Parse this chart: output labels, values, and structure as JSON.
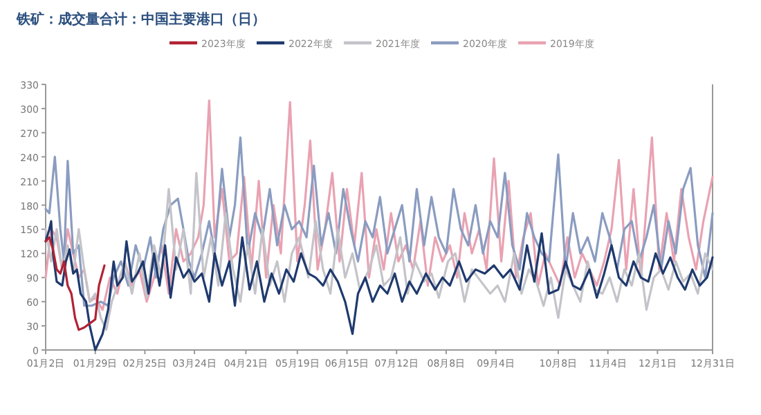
{
  "chart_data": {
    "type": "line",
    "title": "铁矿：成交量合计：中国主要港口（日）",
    "legend": "top",
    "xlim": [
      "--01-02",
      "--12-31"
    ],
    "xticks": [
      {
        "value": "--01-02",
        "label": "01月2日"
      },
      {
        "value": "--01-29",
        "label": "01月29日"
      },
      {
        "value": "--02-25",
        "label": "02月25日"
      },
      {
        "value": "--03-24",
        "label": "03月24日"
      },
      {
        "value": "--04-21",
        "label": "04月21日"
      },
      {
        "value": "--05-19",
        "label": "05月19日"
      },
      {
        "value": "--06-15",
        "label": "06月15日"
      },
      {
        "value": "--07-12",
        "label": "07月12日"
      },
      {
        "value": "--08-08",
        "label": "08月8日"
      },
      {
        "value": "--09-04",
        "label": "09月4日"
      },
      {
        "value": "--10-08",
        "label": "10月8日"
      },
      {
        "value": "--11-04",
        "label": "11月4日"
      },
      {
        "value": "--12-01",
        "label": "12月1日"
      },
      {
        "value": "--12-31",
        "label": "12月31日"
      }
    ],
    "ylim": [
      0,
      330
    ],
    "yticks": [
      0,
      30,
      60,
      90,
      120,
      150,
      180,
      210,
      240,
      270,
      300,
      330
    ],
    "series": [
      {
        "name": "2023年度",
        "color": "#b22234",
        "x": [
          "--01-02",
          "--01-04",
          "--01-06",
          "--01-08",
          "--01-10",
          "--01-12",
          "--01-14",
          "--01-16",
          "--01-18",
          "--01-20",
          "--01-23",
          "--01-26",
          "--01-29",
          "--01-31",
          "--02-03"
        ],
        "values": [
          135,
          140,
          125,
          100,
          95,
          110,
          80,
          70,
          40,
          25,
          28,
          33,
          38,
          80,
          105
        ]
      },
      {
        "name": "2022年度",
        "color": "#1f3a6e",
        "x": [
          "--01-02",
          "--01-04",
          "--01-05",
          "--01-06",
          "--01-08",
          "--01-11",
          "--01-13",
          "--01-15",
          "--01-17",
          "--01-19",
          "--01-21",
          "--01-24",
          "--01-26",
          "--01-29",
          "--02-02",
          "--02-05",
          "--02-08",
          "--02-10",
          "--02-13",
          "--02-15",
          "--02-18",
          "--02-21",
          "--02-24",
          "--02-27",
          "--03-02",
          "--03-05",
          "--03-08",
          "--03-11",
          "--03-14",
          "--03-18",
          "--03-21",
          "--03-24",
          "--03-28",
          "--04-01",
          "--04-04",
          "--04-08",
          "--04-12",
          "--04-15",
          "--04-19",
          "--04-23",
          "--04-27",
          "--05-01",
          "--05-05",
          "--05-09",
          "--05-13",
          "--05-17",
          "--05-21",
          "--05-25",
          "--05-29",
          "--06-02",
          "--06-06",
          "--06-10",
          "--06-14",
          "--06-18",
          "--06-21",
          "--06-25",
          "--06-29",
          "--07-03",
          "--07-07",
          "--07-11",
          "--07-15",
          "--07-19",
          "--07-23",
          "--07-28",
          "--08-02",
          "--08-06",
          "--08-10",
          "--08-15",
          "--08-19",
          "--08-24",
          "--08-29",
          "--09-03",
          "--09-08",
          "--09-12",
          "--09-17",
          "--09-21",
          "--09-25",
          "--09-29",
          "--10-03",
          "--10-08",
          "--10-12",
          "--10-16",
          "--10-20",
          "--10-25",
          "--10-29",
          "--11-02",
          "--11-06",
          "--11-10",
          "--11-14",
          "--11-18",
          "--11-22",
          "--11-26",
          "--11-30",
          "--12-04",
          "--12-08",
          "--12-12",
          "--12-16",
          "--12-20",
          "--12-24",
          "--12-28",
          "--12-31"
        ],
        "values": [
          135,
          150,
          160,
          120,
          85,
          80,
          110,
          125,
          95,
          100,
          70,
          60,
          30,
          0,
          20,
          50,
          110,
          80,
          90,
          135,
          85,
          95,
          110,
          70,
          120,
          80,
          130,
          65,
          115,
          90,
          100,
          85,
          95,
          60,
          120,
          80,
          110,
          55,
          140,
          75,
          110,
          60,
          95,
          70,
          100,
          85,
          120,
          95,
          90,
          80,
          100,
          85,
          60,
          20,
          70,
          90,
          60,
          80,
          70,
          95,
          60,
          85,
          70,
          95,
          75,
          90,
          80,
          110,
          85,
          100,
          95,
          105,
          90,
          100,
          75,
          130,
          85,
          145,
          70,
          75,
          110,
          80,
          75,
          100,
          65,
          95,
          130,
          90,
          80,
          110,
          90,
          85,
          120,
          95,
          115,
          90,
          75,
          100,
          80,
          90,
          115
        ]
      },
      {
        "name": "2021年度",
        "color": "#c3c3c9",
        "x": [
          "--01-02",
          "--01-05",
          "--01-08",
          "--01-11",
          "--01-14",
          "--01-17",
          "--01-20",
          "--01-23",
          "--01-26",
          "--01-29",
          "--02-01",
          "--02-04",
          "--02-07",
          "--02-10",
          "--02-14",
          "--02-18",
          "--02-22",
          "--02-26",
          "--03-02",
          "--03-06",
          "--03-10",
          "--03-14",
          "--03-18",
          "--03-22",
          "--03-25",
          "--03-29",
          "--04-02",
          "--04-06",
          "--04-10",
          "--04-14",
          "--04-18",
          "--04-22",
          "--04-26",
          "--04-30",
          "--05-04",
          "--05-08",
          "--05-12",
          "--05-16",
          "--05-20",
          "--05-25",
          "--05-29",
          "--06-02",
          "--06-06",
          "--06-10",
          "--06-14",
          "--06-18",
          "--06-22",
          "--06-27",
          "--07-01",
          "--07-05",
          "--07-09",
          "--07-14",
          "--07-18",
          "--07-22",
          "--07-27",
          "--07-31",
          "--08-04",
          "--08-09",
          "--08-13",
          "--08-18",
          "--08-22",
          "--08-27",
          "--09-01",
          "--09-05",
          "--09-09",
          "--09-14",
          "--09-18",
          "--09-22",
          "--09-26",
          "--09-30",
          "--10-04",
          "--10-08",
          "--10-12",
          "--10-16",
          "--10-20",
          "--10-24",
          "--10-28",
          "--11-01",
          "--11-05",
          "--11-09",
          "--11-13",
          "--11-17",
          "--11-21",
          "--11-25",
          "--11-29",
          "--12-03",
          "--12-07",
          "--12-11",
          "--12-15",
          "--12-19",
          "--12-23",
          "--12-27",
          "--12-31"
        ],
        "values": [
          150,
          110,
          150,
          100,
          130,
          95,
          150,
          100,
          60,
          70,
          40,
          25,
          60,
          80,
          110,
          70,
          120,
          65,
          130,
          90,
          200,
          100,
          150,
          70,
          220,
          90,
          140,
          80,
          170,
          100,
          60,
          130,
          70,
          150,
          80,
          110,
          60,
          120,
          140,
          90,
          160,
          100,
          70,
          150,
          90,
          120,
          75,
          100,
          130,
          80,
          90,
          140,
          70,
          110,
          85,
          95,
          65,
          110,
          120,
          60,
          100,
          85,
          70,
          80,
          60,
          120,
          70,
          100,
          85,
          55,
          90,
          40,
          100,
          80,
          60,
          110,
          75,
          70,
          90,
          60,
          100,
          80,
          120,
          50,
          90,
          100,
          75,
          110,
          85,
          95,
          70,
          120,
          100
        ]
      },
      {
        "name": "2020年度",
        "color": "#8a9cc0",
        "x": [
          "--01-02",
          "--01-04",
          "--01-07",
          "--01-10",
          "--01-12",
          "--01-14",
          "--01-17",
          "--01-20",
          "--01-23",
          "--01-27",
          "--02-01",
          "--02-05",
          "--02-08",
          "--02-12",
          "--02-16",
          "--02-20",
          "--02-24",
          "--02-28",
          "--03-03",
          "--03-07",
          "--03-11",
          "--03-15",
          "--03-18",
          "--03-21",
          "--03-24",
          "--03-28",
          "--04-01",
          "--04-04",
          "--04-08",
          "--04-12",
          "--04-15",
          "--04-18",
          "--04-22",
          "--04-26",
          "--04-30",
          "--05-04",
          "--05-08",
          "--05-12",
          "--05-16",
          "--05-20",
          "--05-24",
          "--05-28",
          "--06-01",
          "--06-05",
          "--06-09",
          "--06-13",
          "--06-17",
          "--06-21",
          "--06-25",
          "--06-29",
          "--07-03",
          "--07-07",
          "--07-11",
          "--07-15",
          "--07-19",
          "--07-23",
          "--07-27",
          "--07-31",
          "--08-04",
          "--08-08",
          "--08-12",
          "--08-16",
          "--08-20",
          "--08-24",
          "--08-28",
          "--09-01",
          "--09-05",
          "--09-09",
          "--09-13",
          "--09-17",
          "--09-21",
          "--09-25",
          "--09-29",
          "--10-03",
          "--10-08",
          "--10-12",
          "--10-16",
          "--10-20",
          "--10-24",
          "--10-28",
          "--11-01",
          "--11-05",
          "--11-09",
          "--11-13",
          "--11-17",
          "--11-21",
          "--11-25",
          "--11-29",
          "--12-03",
          "--12-07",
          "--12-11",
          "--12-15",
          "--12-19",
          "--12-23",
          "--12-27",
          "--12-31"
        ],
        "values": [
          175,
          170,
          240,
          150,
          110,
          235,
          120,
          130,
          55,
          55,
          60,
          55,
          90,
          110,
          80,
          130,
          100,
          140,
          90,
          150,
          180,
          188,
          150,
          110,
          90,
          120,
          160,
          120,
          225,
          140,
          180,
          264,
          120,
          170,
          140,
          200,
          130,
          180,
          150,
          160,
          140,
          229,
          130,
          170,
          120,
          200,
          150,
          110,
          160,
          140,
          190,
          120,
          150,
          180,
          110,
          200,
          130,
          190,
          140,
          120,
          200,
          150,
          130,
          180,
          120,
          160,
          140,
          220,
          130,
          100,
          170,
          140,
          120,
          110,
          243,
          100,
          170,
          120,
          140,
          110,
          170,
          140,
          100,
          150,
          160,
          110,
          140,
          180,
          100,
          160,
          120,
          200,
          226,
          130,
          90,
          170
        ]
      },
      {
        "name": "2019年度",
        "color": "#e9a2b2",
        "x": [
          "--01-02",
          "--01-05",
          "--01-08",
          "--01-11",
          "--01-14",
          "--01-17",
          "--01-20",
          "--01-23",
          "--01-26",
          "--01-29",
          "--02-02",
          "--02-06",
          "--02-10",
          "--02-14",
          "--02-18",
          "--02-22",
          "--02-26",
          "--03-02",
          "--03-06",
          "--03-10",
          "--03-14",
          "--03-18",
          "--03-22",
          "--03-26",
          "--03-29",
          "--04-01",
          "--04-04",
          "--04-08",
          "--04-12",
          "--04-16",
          "--04-20",
          "--04-24",
          "--04-28",
          "--05-02",
          "--05-06",
          "--05-10",
          "--05-15",
          "--05-19",
          "--05-23",
          "--05-26",
          "--05-30",
          "--06-03",
          "--06-07",
          "--06-11",
          "--06-15",
          "--06-19",
          "--06-23",
          "--06-27",
          "--07-01",
          "--07-05",
          "--07-09",
          "--07-13",
          "--07-17",
          "--07-21",
          "--07-25",
          "--07-29",
          "--08-02",
          "--08-06",
          "--08-10",
          "--08-14",
          "--08-18",
          "--08-22",
          "--08-26",
          "--08-30",
          "--09-03",
          "--09-07",
          "--09-11",
          "--09-15",
          "--09-19",
          "--09-23",
          "--09-27",
          "--10-01",
          "--10-05",
          "--10-09",
          "--10-13",
          "--10-17",
          "--10-21",
          "--10-25",
          "--10-29",
          "--11-02",
          "--11-06",
          "--11-10",
          "--11-14",
          "--11-18",
          "--11-22",
          "--11-28",
          "--12-02",
          "--12-06",
          "--12-10",
          "--12-14",
          "--12-18",
          "--12-22",
          "--12-26",
          "--12-31"
        ],
        "values": [
          90,
          150,
          140,
          100,
          150,
          120,
          90,
          100,
          60,
          65,
          50,
          90,
          70,
          110,
          80,
          100,
          60,
          90,
          130,
          70,
          150,
          110,
          120,
          140,
          180,
          310,
          140,
          200,
          110,
          120,
          215,
          100,
          210,
          90,
          180,
          120,
          308,
          110,
          180,
          260,
          100,
          150,
          220,
          110,
          200,
          130,
          220,
          90,
          150,
          100,
          170,
          110,
          130,
          100,
          160,
          80,
          140,
          110,
          130,
          90,
          170,
          120,
          150,
          100,
          238,
          110,
          210,
          90,
          140,
          170,
          80,
          120,
          100,
          80,
          140,
          90,
          120,
          100,
          80,
          110,
          150,
          236,
          100,
          200,
          90,
          264,
          100,
          170,
          110,
          200,
          140,
          100,
          160,
          215
        ]
      }
    ]
  }
}
